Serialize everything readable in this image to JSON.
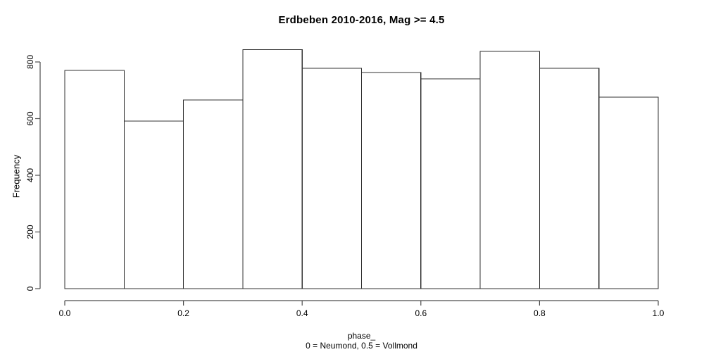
{
  "chart_data": {
    "type": "bar",
    "subtype": "histogram",
    "title": "Erdbeben 2010-2016, Mag >= 4.5",
    "xlabel": "phase_",
    "xlabel_line2": "0 = Neumond, 0.5 = Vollmond",
    "ylabel": "Frequency",
    "bin_width": 0.1,
    "bin_edges": [
      0.0,
      0.1,
      0.2,
      0.3,
      0.4,
      0.5,
      0.6,
      0.7,
      0.8,
      0.9,
      1.0
    ],
    "values": [
      770,
      591,
      666,
      843,
      778,
      763,
      740,
      837,
      778,
      676
    ],
    "x_ticks": [
      0.0,
      0.2,
      0.4,
      0.6,
      0.8,
      1.0
    ],
    "x_tick_labels": [
      "0.0",
      "0.2",
      "0.4",
      "0.6",
      "0.8",
      "1.0"
    ],
    "y_ticks": [
      0,
      200,
      400,
      600,
      800
    ],
    "y_tick_labels": [
      "0",
      "200",
      "400",
      "600",
      "800"
    ],
    "xlim": [
      0.0,
      1.0
    ],
    "ylim": [
      0,
      843
    ],
    "grid": false,
    "legend": null,
    "colors": {
      "bar_fill": "#ffffff",
      "bar_stroke": "#333333",
      "axis": "#4d4d4d",
      "text": "#000000",
      "background": "#ffffff"
    }
  }
}
